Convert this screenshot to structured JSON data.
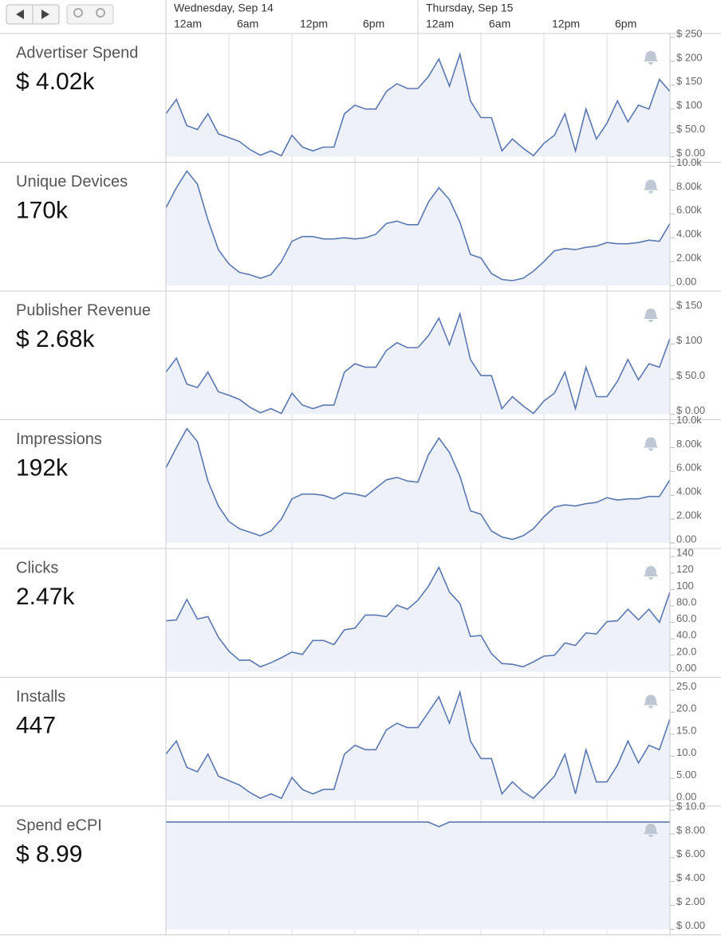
{
  "x_axis": {
    "xlim": [
      0,
      48
    ],
    "x": [
      0,
      1,
      2,
      3,
      4,
      5,
      6,
      7,
      8,
      9,
      10,
      11,
      12,
      13,
      14,
      15,
      16,
      17,
      18,
      19,
      20,
      21,
      22,
      23,
      24,
      25,
      26,
      27,
      28,
      29,
      30,
      31,
      32,
      33,
      34,
      35,
      36,
      37,
      38,
      39,
      40,
      41,
      42,
      43,
      44,
      45,
      46,
      47,
      48
    ],
    "days": [
      {
        "value": 0,
        "label": "Wednesday, Sep 14"
      },
      {
        "value": 24,
        "label": "Thursday, Sep 15"
      }
    ],
    "xticks": [
      {
        "value": 0,
        "label": "12am"
      },
      {
        "value": 6,
        "label": "6am"
      },
      {
        "value": 12,
        "label": "12pm"
      },
      {
        "value": 18,
        "label": "6pm"
      },
      {
        "value": 24,
        "label": "12am"
      },
      {
        "value": 30,
        "label": "6am"
      },
      {
        "value": 36,
        "label": "12pm"
      },
      {
        "value": 42,
        "label": "6pm"
      }
    ]
  },
  "chart_data": [
    {
      "type": "area",
      "title": "Advertiser Spend",
      "total": "$ 4.02k",
      "color": "#5b78b0",
      "ylim": [
        0,
        250
      ],
      "yticks": [
        {
          "value": 0,
          "label": "$ 0.00"
        },
        {
          "value": 50,
          "label": "$ 50.0"
        },
        {
          "value": 100,
          "label": "$ 100"
        },
        {
          "value": 150,
          "label": "$ 150"
        },
        {
          "value": 200,
          "label": "$ 200"
        },
        {
          "value": 250,
          "label": "$ 250"
        }
      ],
      "values": [
        90,
        120,
        65,
        57,
        90,
        48,
        40,
        32,
        15,
        3,
        12,
        2,
        45,
        20,
        12,
        20,
        20,
        90,
        108,
        100,
        100,
        137,
        153,
        143,
        143,
        168,
        205,
        148,
        215,
        117,
        82,
        82,
        12,
        37,
        18,
        2,
        28,
        45,
        90,
        12,
        100,
        37,
        70,
        117,
        73,
        108,
        100,
        162,
        137
      ]
    },
    {
      "type": "area",
      "title": "Unique Devices",
      "total": "170k",
      "color": "#5b78b0",
      "ylim": [
        0,
        10000
      ],
      "yticks": [
        {
          "value": 0,
          "label": "0.00"
        },
        {
          "value": 2000,
          "label": "2.00k"
        },
        {
          "value": 4000,
          "label": "4.00k"
        },
        {
          "value": 6000,
          "label": "6.00k"
        },
        {
          "value": 8000,
          "label": "8.00k"
        },
        {
          "value": 10000,
          "label": "10.0k"
        }
      ],
      "values": [
        6500,
        8200,
        9600,
        8500,
        5500,
        3000,
        1800,
        1100,
        900,
        600,
        900,
        2000,
        3700,
        4100,
        4100,
        3900,
        3900,
        4000,
        3900,
        4000,
        4300,
        5200,
        5400,
        5100,
        5100,
        7000,
        8200,
        7200,
        5300,
        2600,
        2300,
        1000,
        500,
        400,
        600,
        1200,
        2000,
        2900,
        3100,
        3000,
        3200,
        3300,
        3600,
        3500,
        3500,
        3600,
        3800,
        3700,
        5200
      ]
    },
    {
      "type": "area",
      "title": "Publisher Revenue",
      "total": "$ 2.68k",
      "color": "#5b78b0",
      "ylim": [
        0,
        170
      ],
      "yticks": [
        {
          "value": 0,
          "label": "$ 0.00"
        },
        {
          "value": 50,
          "label": "$ 50.0"
        },
        {
          "value": 100,
          "label": "$ 100"
        },
        {
          "value": 150,
          "label": "$ 150"
        }
      ],
      "values": [
        60,
        80,
        43,
        38,
        60,
        32,
        27,
        21,
        10,
        2,
        8,
        1,
        30,
        13,
        8,
        13,
        13,
        60,
        72,
        67,
        67,
        91,
        102,
        95,
        95,
        112,
        137,
        99,
        143,
        78,
        55,
        55,
        8,
        25,
        12,
        1,
        19,
        30,
        60,
        8,
        67,
        25,
        25,
        47,
        78,
        49,
        72,
        67,
        108
      ]
    },
    {
      "type": "area",
      "title": "Impressions",
      "total": "192k",
      "color": "#5b78b0",
      "ylim": [
        0,
        10000
      ],
      "yticks": [
        {
          "value": 0,
          "label": "0.00"
        },
        {
          "value": 2000,
          "label": "2.00k"
        },
        {
          "value": 4000,
          "label": "4.00k"
        },
        {
          "value": 6000,
          "label": "6.00k"
        },
        {
          "value": 8000,
          "label": "8.00k"
        },
        {
          "value": 10000,
          "label": "10.0k"
        }
      ],
      "values": [
        6300,
        8000,
        9600,
        8500,
        5200,
        3100,
        1800,
        1200,
        900,
        600,
        1000,
        2000,
        3700,
        4100,
        4100,
        4000,
        3700,
        4200,
        4100,
        3900,
        4600,
        5300,
        5500,
        5200,
        5100,
        7400,
        8800,
        7600,
        5600,
        2700,
        2400,
        1000,
        500,
        300,
        600,
        1200,
        2200,
        3000,
        3200,
        3100,
        3300,
        3400,
        3800,
        3600,
        3700,
        3700,
        3900,
        3900,
        5300
      ]
    },
    {
      "type": "area",
      "title": "Clicks",
      "total": "2.47k",
      "color": "#5b78b0",
      "ylim": [
        0,
        145
      ],
      "yticks": [
        {
          "value": 0,
          "label": "0.00"
        },
        {
          "value": 20,
          "label": "20.0"
        },
        {
          "value": 40,
          "label": "40.0"
        },
        {
          "value": 60,
          "label": "60.0"
        },
        {
          "value": 80,
          "label": "80.0"
        },
        100,
        120,
        140
      ],
      "values": [
        62,
        63,
        88,
        64,
        67,
        42,
        25,
        14,
        14,
        6,
        11,
        17,
        24,
        21,
        38,
        38,
        33,
        51,
        53,
        69,
        69,
        67,
        81,
        76,
        87,
        104,
        127,
        97,
        83,
        43,
        44,
        22,
        10,
        9,
        6,
        12,
        19,
        20,
        35,
        32,
        47,
        46,
        61,
        62,
        76,
        63,
        76,
        60,
        97
      ]
    },
    {
      "type": "area",
      "title": "Installs",
      "total": "447",
      "color": "#5b78b0",
      "ylim": [
        0,
        27
      ],
      "yticks": [
        {
          "value": 0,
          "label": "0.00"
        },
        {
          "value": 5,
          "label": "5.00"
        },
        {
          "value": 10,
          "label": "10.0"
        },
        {
          "value": 15,
          "label": "15.0"
        },
        {
          "value": 20,
          "label": "20.0"
        },
        {
          "value": 25,
          "label": "25.0"
        }
      ],
      "values": [
        10.5,
        13.5,
        7.5,
        6.5,
        10.5,
        5.5,
        4.5,
        3.5,
        1.8,
        0.5,
        1.5,
        0.5,
        5.2,
        2.5,
        1.5,
        2.5,
        2.5,
        10.5,
        12.5,
        11.5,
        11.5,
        16,
        17.5,
        16.5,
        16.5,
        20,
        23.5,
        17.5,
        24.5,
        13.5,
        9.5,
        9.5,
        1.5,
        4.2,
        2,
        0.5,
        3,
        5.5,
        10.5,
        1.5,
        11.5,
        4.2,
        4.2,
        8,
        13.5,
        8.5,
        12.5,
        11.5,
        18.5
      ]
    },
    {
      "type": "area",
      "title": "Spend eCPI",
      "total": "$ 8.99",
      "color": "#5b78b0",
      "ylim": [
        0,
        10
      ],
      "yticks": [
        {
          "value": 0,
          "label": "$ 0.00"
        },
        {
          "value": 2,
          "label": "$ 2.00"
        },
        {
          "value": 4,
          "label": "$ 4.00"
        },
        {
          "value": 6,
          "label": "$ 6.00"
        },
        {
          "value": 8,
          "label": "$ 8.00"
        },
        {
          "value": 10,
          "label": "$ 10.0"
        }
      ],
      "values": [
        8.99,
        8.99,
        8.99,
        8.99,
        8.99,
        8.99,
        8.99,
        8.99,
        8.99,
        8.99,
        8.99,
        8.99,
        8.99,
        8.99,
        8.99,
        8.99,
        8.99,
        8.99,
        8.99,
        8.99,
        8.99,
        8.99,
        8.99,
        8.99,
        8.99,
        8.99,
        8.6,
        8.99,
        8.99,
        8.99,
        8.99,
        8.99,
        8.99,
        8.99,
        8.99,
        8.99,
        8.99,
        8.99,
        8.99,
        8.99,
        8.99,
        8.99,
        8.99,
        8.99,
        8.99,
        8.99,
        8.99,
        8.99,
        8.99
      ]
    }
  ]
}
